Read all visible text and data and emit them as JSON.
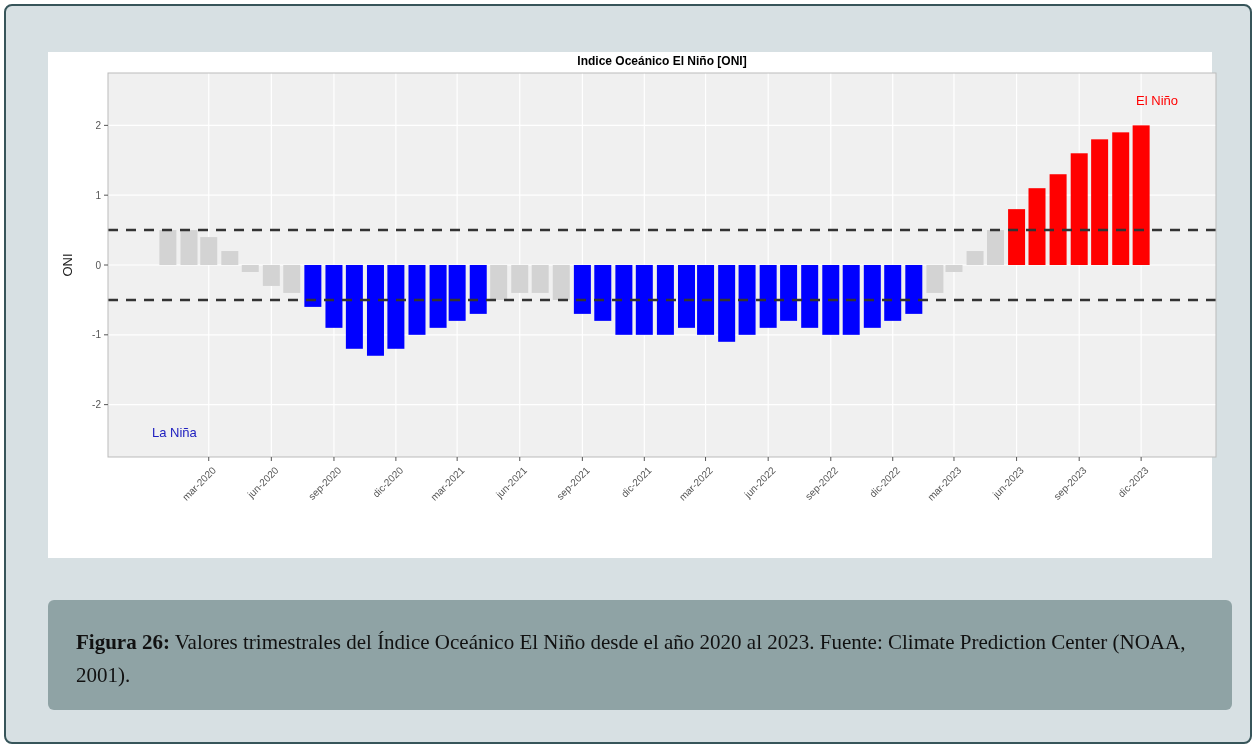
{
  "chart_data": {
    "type": "bar",
    "title": "Indice Oceánico El Niño [ONI]",
    "ylabel": "ONI",
    "x": [
      "2020-01",
      "2020-02",
      "2020-03",
      "2020-04",
      "2020-05",
      "2020-06",
      "2020-07",
      "2020-08",
      "2020-09",
      "2020-10",
      "2020-11",
      "2020-12",
      "2021-01",
      "2021-02",
      "2021-03",
      "2021-04",
      "2021-05",
      "2021-06",
      "2021-07",
      "2021-08",
      "2021-09",
      "2021-10",
      "2021-11",
      "2021-12",
      "2022-01",
      "2022-02",
      "2022-03",
      "2022-04",
      "2022-05",
      "2022-06",
      "2022-07",
      "2022-08",
      "2022-09",
      "2022-10",
      "2022-11",
      "2022-12",
      "2023-01",
      "2023-02",
      "2023-03",
      "2023-04",
      "2023-05",
      "2023-06",
      "2023-07",
      "2023-08",
      "2023-09",
      "2023-10",
      "2023-11",
      "2023-12"
    ],
    "values": [
      0.5,
      0.5,
      0.4,
      0.2,
      -0.1,
      -0.3,
      -0.4,
      -0.6,
      -0.9,
      -1.2,
      -1.3,
      -1.2,
      -1.0,
      -0.9,
      -0.8,
      -0.7,
      -0.5,
      -0.4,
      -0.4,
      -0.5,
      -0.7,
      -0.8,
      -1.0,
      -1.0,
      -1.0,
      -0.9,
      -1.0,
      -1.1,
      -1.0,
      -0.9,
      -0.8,
      -0.9,
      -1.0,
      -1.0,
      -0.9,
      -0.8,
      -0.7,
      -0.4,
      -0.1,
      0.2,
      0.5,
      0.8,
      1.1,
      1.3,
      1.6,
      1.8,
      1.9,
      2.0
    ],
    "colors": [
      "#d3d3d3",
      "#d3d3d3",
      "#d3d3d3",
      "#d3d3d3",
      "#d3d3d3",
      "#d3d3d3",
      "#d3d3d3",
      "#0000ff",
      "#0000ff",
      "#0000ff",
      "#0000ff",
      "#0000ff",
      "#0000ff",
      "#0000ff",
      "#0000ff",
      "#0000ff",
      "#d3d3d3",
      "#d3d3d3",
      "#d3d3d3",
      "#d3d3d3",
      "#0000ff",
      "#0000ff",
      "#0000ff",
      "#0000ff",
      "#0000ff",
      "#0000ff",
      "#0000ff",
      "#0000ff",
      "#0000ff",
      "#0000ff",
      "#0000ff",
      "#0000ff",
      "#0000ff",
      "#0000ff",
      "#0000ff",
      "#0000ff",
      "#0000ff",
      "#d3d3d3",
      "#d3d3d3",
      "#d3d3d3",
      "#d3d3d3",
      "#ff0000",
      "#ff0000",
      "#ff0000",
      "#ff0000",
      "#ff0000",
      "#ff0000",
      "#ff0000"
    ],
    "xlim": [
      "2019-10-05",
      "2024-03-20"
    ],
    "xticks": [
      {
        "value": "2020-03",
        "label": "mar-2020"
      },
      {
        "value": "2020-06",
        "label": "jun-2020"
      },
      {
        "value": "2020-09",
        "label": "sep-2020"
      },
      {
        "value": "2020-12",
        "label": "dic-2020"
      },
      {
        "value": "2021-03",
        "label": "mar-2021"
      },
      {
        "value": "2021-06",
        "label": "jun-2021"
      },
      {
        "value": "2021-09",
        "label": "sep-2021"
      },
      {
        "value": "2021-12",
        "label": "dic-2021"
      },
      {
        "value": "2022-03",
        "label": "mar-2022"
      },
      {
        "value": "2022-06",
        "label": "jun-2022"
      },
      {
        "value": "2022-09",
        "label": "sep-2022"
      },
      {
        "value": "2022-12",
        "label": "dic-2022"
      },
      {
        "value": "2023-03",
        "label": "mar-2023"
      },
      {
        "value": "2023-06",
        "label": "jun-2023"
      },
      {
        "value": "2023-09",
        "label": "sep-2023"
      },
      {
        "value": "2023-12",
        "label": "dic-2023"
      }
    ],
    "ylim": [
      -2.75,
      2.75
    ],
    "yticks": [
      -2,
      -1,
      0,
      1,
      2
    ],
    "grid": true,
    "ref_lines": [
      {
        "axis": "y",
        "value": 0.5,
        "color": "#333333",
        "line_style": "dashed"
      },
      {
        "axis": "y",
        "value": -0.5,
        "color": "#333333",
        "line_style": "dashed"
      }
    ],
    "annotations": [
      "El Niño",
      "La Niña",
      "Figura 26: Valores trimestrales del Índice Oceánico El Niño desde el año 2020 al 2023. Fuente: Climate Prediction Center (NOAA, 2001)."
    ]
  }
}
